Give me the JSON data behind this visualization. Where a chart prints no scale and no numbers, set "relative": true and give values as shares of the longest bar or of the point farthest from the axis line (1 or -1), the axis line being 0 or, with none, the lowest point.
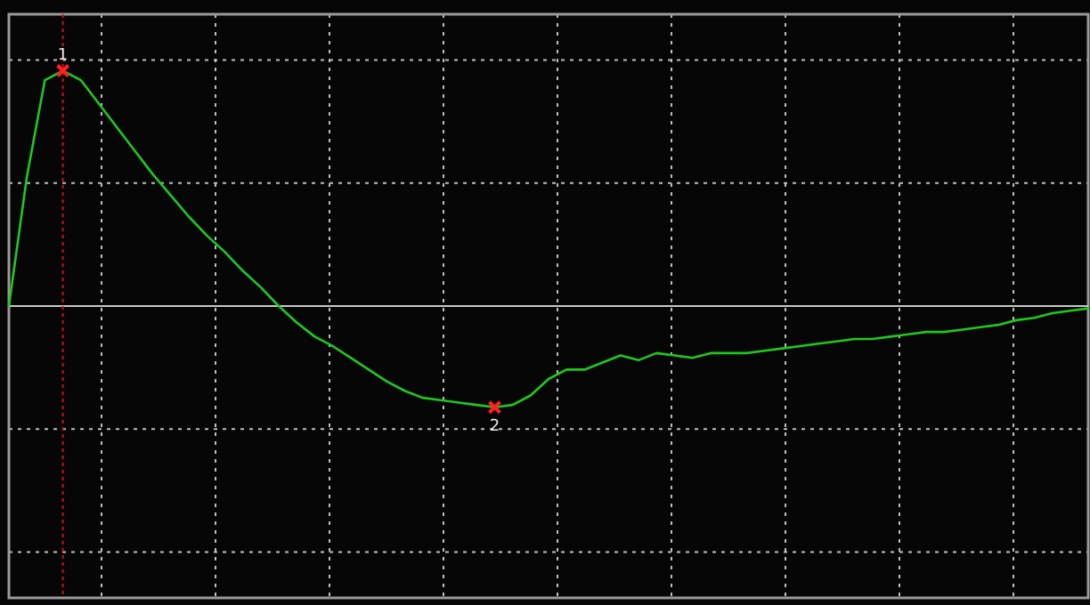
{
  "chart_data": {
    "type": "line",
    "relative": true,
    "grid": true,
    "line_style": "solid",
    "marker": "none",
    "categories": [
      null,
      null,
      null,
      null,
      null,
      null,
      null,
      null,
      null,
      null,
      null,
      null,
      null,
      null,
      null,
      null,
      null,
      null,
      null,
      null,
      null,
      null,
      null,
      null,
      null,
      null,
      null,
      null,
      null,
      null,
      null,
      null,
      null,
      null,
      null,
      null,
      null,
      null,
      null,
      null,
      null,
      null,
      null,
      null,
      null,
      null,
      null,
      null,
      null,
      null,
      null,
      null,
      null,
      null,
      null,
      null,
      null,
      null,
      null,
      null,
      null
    ],
    "series": [
      {
        "color": "#1fc81f",
        "values": [
          0,
          0.55,
          0.96,
          1,
          0.96,
          0.86,
          0.76,
          0.66,
          0.56,
          0.47,
          0.38,
          0.3,
          0.23,
          0.15,
          0.08,
          0,
          -0.07,
          -0.13,
          -0.17,
          -0.22,
          -0.27,
          -0.32,
          -0.36,
          -0.39,
          -0.4,
          -0.41,
          -0.42,
          -0.43,
          -0.42,
          -0.38,
          -0.31,
          -0.27,
          -0.27,
          -0.24,
          -0.21,
          -0.23,
          -0.2,
          -0.21,
          -0.22,
          -0.2,
          -0.2,
          -0.2,
          -0.19,
          -0.18,
          -0.17,
          -0.16,
          -0.15,
          -0.14,
          -0.14,
          -0.13,
          -0.12,
          -0.11,
          -0.11,
          -0.1,
          -0.09,
          -0.08,
          -0.06,
          -0.05,
          -0.03,
          -0.02,
          -0.01
        ]
      }
    ],
    "annotations": [
      {
        "text": "1",
        "y": 1
      },
      {
        "text": "2",
        "y": -0.43
      }
    ]
  }
}
